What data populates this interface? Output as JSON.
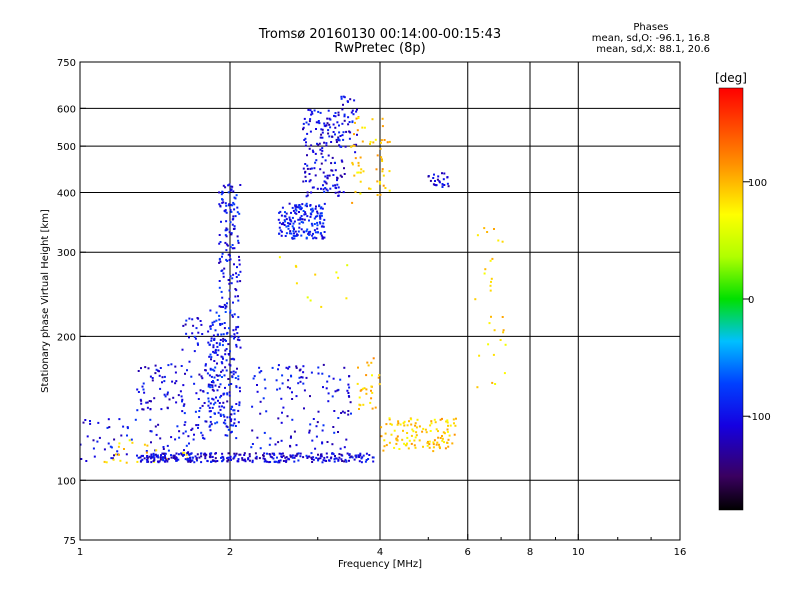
{
  "header": {
    "title_line1": "Tromsø 20160130 00:14:00-00:15:43",
    "title_line2": "RwPretec (8p)"
  },
  "phase_box": {
    "heading": "Phases",
    "line1": "mean, sd,O: -96.1, 16.8",
    "line2": "mean, sd,X:  88.1, 20.6"
  },
  "colorbar": {
    "unit": "[deg]",
    "ticks": [
      "100",
      "0",
      "-100"
    ],
    "tick_values": [
      100,
      0,
      -100
    ],
    "range": [
      -180,
      180
    ]
  },
  "chart_data": {
    "type": "scatter",
    "title": "Tromsø 20160130 00:14:00-00:15:43",
    "subtitle": "RwPretec (8p)",
    "xlabel": "Frequency [MHz]",
    "ylabel": "Stationary phase Virtual Height [km]",
    "xscale": "log",
    "yscale": "log",
    "xlim": [
      1,
      16
    ],
    "ylim": [
      75,
      750
    ],
    "xticks": [
      1,
      2,
      4,
      6,
      8,
      10,
      16
    ],
    "xtick_labels": [
      "1",
      "2",
      "4",
      "6",
      "8",
      "10",
      "16"
    ],
    "yticks": [
      75,
      100,
      200,
      300,
      400,
      500,
      600,
      750
    ],
    "ytick_labels": [
      "75",
      "100",
      "200",
      "300",
      "400",
      "500",
      "600",
      "750"
    ],
    "x_gridlines": [
      2,
      4,
      6,
      8,
      10
    ],
    "y_gridlines": [
      100,
      200,
      300,
      400,
      500,
      600
    ],
    "grid": true,
    "colorbar_label": "[deg]",
    "colorbar_range": [
      -180,
      180
    ],
    "clusters": [
      {
        "x_range": [
          1.0,
          1.7
        ],
        "y_range": [
          108,
          135
        ],
        "phase": -105,
        "count": 70
      },
      {
        "x_range": [
          1.1,
          1.7
        ],
        "y_range": [
          108,
          122
        ],
        "phase": 85,
        "count": 25
      },
      {
        "x_range": [
          1.3,
          3.9
        ],
        "y_range": [
          109,
          114
        ],
        "phase": -110,
        "count": 320
      },
      {
        "x_range": [
          1.3,
          1.6
        ],
        "y_range": [
          140,
          175
        ],
        "phase": -105,
        "count": 60
      },
      {
        "x_range": [
          1.6,
          2.1
        ],
        "y_range": [
          120,
          220
        ],
        "phase": -105,
        "count": 140
      },
      {
        "x_range": [
          1.8,
          2.1
        ],
        "y_range": [
          125,
          230
        ],
        "phase": -95,
        "count": 160
      },
      {
        "x_range": [
          1.9,
          2.1
        ],
        "y_range": [
          230,
          420
        ],
        "phase": -100,
        "count": 130
      },
      {
        "x_range": [
          2.2,
          3.5
        ],
        "y_range": [
          115,
          175
        ],
        "phase": -105,
        "count": 130
      },
      {
        "x_range": [
          2.5,
          3.1
        ],
        "y_range": [
          320,
          380
        ],
        "phase": -95,
        "count": 170
      },
      {
        "x_range": [
          2.8,
          3.4
        ],
        "y_range": [
          390,
          600
        ],
        "phase": -110,
        "count": 160
      },
      {
        "x_range": [
          3.3,
          3.6
        ],
        "y_range": [
          480,
          640
        ],
        "phase": -105,
        "count": 40
      },
      {
        "x_range": [
          3.5,
          4.2
        ],
        "y_range": [
          380,
          580
        ],
        "phase": 92,
        "count": 60
      },
      {
        "x_range": [
          3.6,
          4.0
        ],
        "y_range": [
          140,
          180
        ],
        "phase": 95,
        "count": 30
      },
      {
        "x_range": [
          4.0,
          5.7
        ],
        "y_range": [
          115,
          135
        ],
        "phase": 90,
        "count": 120
      },
      {
        "x_range": [
          5.0,
          5.6
        ],
        "y_range": [
          410,
          440
        ],
        "phase": -115,
        "count": 25
      },
      {
        "x_range": [
          6.2,
          7.2
        ],
        "y_range": [
          150,
          340
        ],
        "phase": 85,
        "count": 30
      },
      {
        "x_range": [
          2.5,
          3.5
        ],
        "y_range": [
          230,
          300
        ],
        "phase": 80,
        "count": 12
      }
    ]
  }
}
